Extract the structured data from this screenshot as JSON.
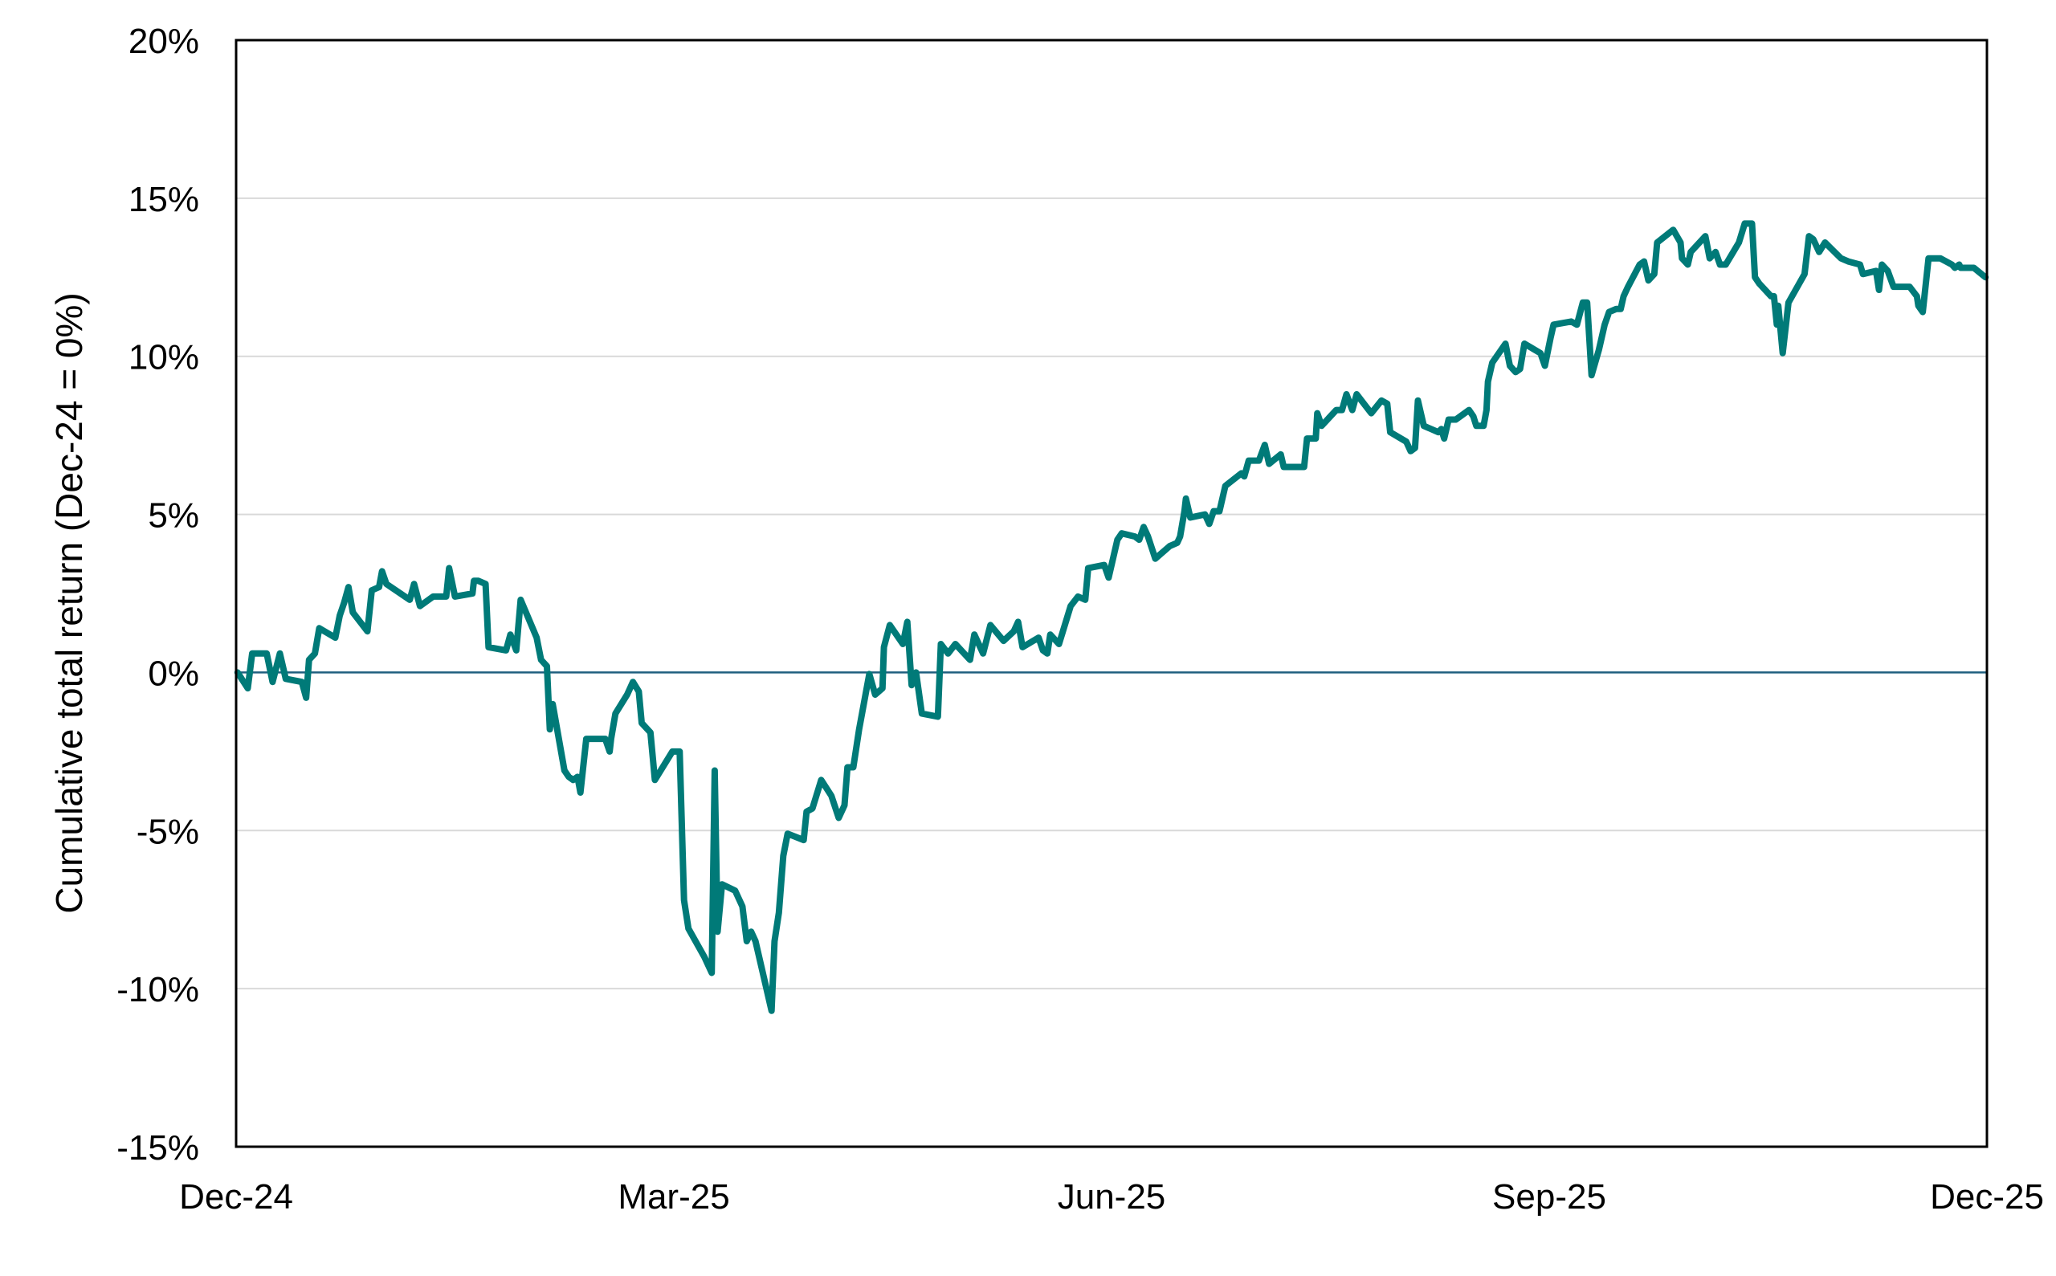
{
  "chart_data": {
    "type": "line",
    "title": "",
    "xlabel": "",
    "ylabel": "Cumulative total return (Dec-24 = 0%)",
    "ylim": [
      -15,
      20
    ],
    "xlim_months": [
      0,
      12
    ],
    "grid": "horizontal",
    "legend": "none",
    "y_ticks": [
      -15,
      -10,
      -5,
      0,
      5,
      10,
      15,
      20
    ],
    "y_tick_labels": [
      "-15%",
      "-10%",
      "-5%",
      "0%",
      "5%",
      "10%",
      "15%",
      "20%"
    ],
    "x_ticks_months": [
      0,
      3,
      6,
      9,
      12
    ],
    "x_tick_labels": [
      "Dec-24",
      "Mar-25",
      "Jun-25",
      "Sep-25",
      "Dec-25"
    ],
    "colors": {
      "series": "#007A78",
      "zero_line": "#1F5F7F",
      "grid": "#D9D9D9",
      "frame": "#000000"
    },
    "series": [
      {
        "name": "Cumulative total return",
        "x_unit": "months since Dec-24",
        "y_unit": "%",
        "points": [
          [
            0.01,
            0.0
          ],
          [
            0.08,
            -0.5
          ],
          [
            0.11,
            0.6
          ],
          [
            0.21,
            0.6
          ],
          [
            0.25,
            -0.3
          ],
          [
            0.3,
            0.6
          ],
          [
            0.34,
            -0.2
          ],
          [
            0.45,
            -0.3
          ],
          [
            0.48,
            -0.8
          ],
          [
            0.5,
            0.4
          ],
          [
            0.54,
            0.6
          ],
          [
            0.57,
            1.4
          ],
          [
            0.68,
            1.1
          ],
          [
            0.71,
            1.8
          ],
          [
            0.74,
            2.2
          ],
          [
            0.77,
            2.7
          ],
          [
            0.8,
            1.9
          ],
          [
            0.9,
            1.3
          ],
          [
            0.93,
            2.6
          ],
          [
            0.98,
            2.7
          ],
          [
            1.0,
            3.2
          ],
          [
            1.03,
            2.8
          ],
          [
            1.19,
            2.3
          ],
          [
            1.22,
            2.8
          ],
          [
            1.26,
            2.1
          ],
          [
            1.35,
            2.4
          ],
          [
            1.44,
            2.4
          ],
          [
            1.46,
            3.3
          ],
          [
            1.5,
            2.4
          ],
          [
            1.62,
            2.5
          ],
          [
            1.63,
            2.9
          ],
          [
            1.66,
            2.9
          ],
          [
            1.71,
            2.8
          ],
          [
            1.73,
            0.8
          ],
          [
            1.85,
            0.7
          ],
          [
            1.88,
            1.2
          ],
          [
            1.92,
            0.7
          ],
          [
            1.95,
            2.3
          ],
          [
            2.06,
            1.1
          ],
          [
            2.09,
            0.4
          ],
          [
            2.13,
            0.2
          ],
          [
            2.15,
            -1.8
          ],
          [
            2.17,
            -1.0
          ],
          [
            2.25,
            -3.1
          ],
          [
            2.28,
            -3.3
          ],
          [
            2.31,
            -3.4
          ],
          [
            2.34,
            -3.3
          ],
          [
            2.36,
            -3.8
          ],
          [
            2.4,
            -2.1
          ],
          [
            2.53,
            -2.1
          ],
          [
            2.56,
            -2.5
          ],
          [
            2.57,
            -2.1
          ],
          [
            2.6,
            -1.3
          ],
          [
            2.68,
            -0.7
          ],
          [
            2.72,
            -0.3
          ],
          [
            2.76,
            -0.6
          ],
          [
            2.78,
            -1.6
          ],
          [
            2.84,
            -1.9
          ],
          [
            2.87,
            -3.4
          ],
          [
            2.99,
            -2.5
          ],
          [
            3.04,
            -2.5
          ],
          [
            3.07,
            -7.2
          ],
          [
            3.1,
            -8.1
          ],
          [
            3.21,
            -9.0
          ],
          [
            3.26,
            -9.5
          ],
          [
            3.28,
            -3.1
          ],
          [
            3.3,
            -8.2
          ],
          [
            3.33,
            -6.7
          ],
          [
            3.42,
            -6.9
          ],
          [
            3.47,
            -7.4
          ],
          [
            3.5,
            -8.5
          ],
          [
            3.53,
            -8.2
          ],
          [
            3.56,
            -8.5
          ],
          [
            3.67,
            -10.7
          ],
          [
            3.69,
            -8.5
          ],
          [
            3.72,
            -7.6
          ],
          [
            3.75,
            -5.8
          ],
          [
            3.78,
            -5.1
          ],
          [
            3.89,
            -5.3
          ],
          [
            3.91,
            -4.4
          ],
          [
            3.95,
            -4.3
          ],
          [
            4.01,
            -3.4
          ],
          [
            4.08,
            -3.9
          ],
          [
            4.13,
            -4.6
          ],
          [
            4.17,
            -4.2
          ],
          [
            4.19,
            -3.0
          ],
          [
            4.23,
            -3.0
          ],
          [
            4.27,
            -1.8
          ],
          [
            4.34,
            -0.05
          ],
          [
            4.38,
            -0.7
          ],
          [
            4.43,
            -0.5
          ],
          [
            4.44,
            0.8
          ],
          [
            4.48,
            1.5
          ],
          [
            4.57,
            0.9
          ],
          [
            4.6,
            1.6
          ],
          [
            4.63,
            -0.4
          ],
          [
            4.66,
            0.0
          ],
          [
            4.7,
            -1.3
          ],
          [
            4.81,
            -1.4
          ],
          [
            4.83,
            0.9
          ],
          [
            4.88,
            0.6
          ],
          [
            4.93,
            0.9
          ],
          [
            5.03,
            0.4
          ],
          [
            5.06,
            1.2
          ],
          [
            5.12,
            0.6
          ],
          [
            5.17,
            1.5
          ],
          [
            5.26,
            1.0
          ],
          [
            5.33,
            1.3
          ],
          [
            5.36,
            1.6
          ],
          [
            5.39,
            0.8
          ],
          [
            5.5,
            1.1
          ],
          [
            5.53,
            0.7
          ],
          [
            5.56,
            0.6
          ],
          [
            5.58,
            1.2
          ],
          [
            5.64,
            0.9
          ],
          [
            5.72,
            2.1
          ],
          [
            5.77,
            2.4
          ],
          [
            5.82,
            2.3
          ],
          [
            5.84,
            3.3
          ],
          [
            5.95,
            3.4
          ],
          [
            5.98,
            3.0
          ],
          [
            6.04,
            4.2
          ],
          [
            6.07,
            4.4
          ],
          [
            6.16,
            4.3
          ],
          [
            6.19,
            4.2
          ],
          [
            6.22,
            4.6
          ],
          [
            6.25,
            4.3
          ],
          [
            6.3,
            3.6
          ],
          [
            6.4,
            4.0
          ],
          [
            6.45,
            4.1
          ],
          [
            6.47,
            4.3
          ],
          [
            6.5,
            5.1
          ],
          [
            6.51,
            5.5
          ],
          [
            6.54,
            4.9
          ],
          [
            6.64,
            5.0
          ],
          [
            6.67,
            4.7
          ],
          [
            6.7,
            5.1
          ],
          [
            6.74,
            5.1
          ],
          [
            6.78,
            5.9
          ],
          [
            6.89,
            6.3
          ],
          [
            6.91,
            6.2
          ],
          [
            6.94,
            6.7
          ],
          [
            6.97,
            6.7
          ],
          [
            7.01,
            6.7
          ],
          [
            7.05,
            7.2
          ],
          [
            7.08,
            6.6
          ],
          [
            7.16,
            6.9
          ],
          [
            7.18,
            6.5
          ],
          [
            7.32,
            6.5
          ],
          [
            7.34,
            7.4
          ],
          [
            7.4,
            7.4
          ],
          [
            7.41,
            8.2
          ],
          [
            7.44,
            7.8
          ],
          [
            7.54,
            8.3
          ],
          [
            7.58,
            8.3
          ],
          [
            7.61,
            8.8
          ],
          [
            7.65,
            8.3
          ],
          [
            7.68,
            8.8
          ],
          [
            7.78,
            8.2
          ],
          [
            7.85,
            8.6
          ],
          [
            7.89,
            8.5
          ],
          [
            7.91,
            7.6
          ],
          [
            8.02,
            7.3
          ],
          [
            8.05,
            7.0
          ],
          [
            8.08,
            7.1
          ],
          [
            8.1,
            8.6
          ],
          [
            8.14,
            7.8
          ],
          [
            8.24,
            7.6
          ],
          [
            8.26,
            7.7
          ],
          [
            8.28,
            7.4
          ],
          [
            8.31,
            8.0
          ],
          [
            8.36,
            8.0
          ],
          [
            8.45,
            8.3
          ],
          [
            8.48,
            8.1
          ],
          [
            8.5,
            7.8
          ],
          [
            8.55,
            7.8
          ],
          [
            8.57,
            8.3
          ],
          [
            8.58,
            9.2
          ],
          [
            8.61,
            9.8
          ],
          [
            8.7,
            10.4
          ],
          [
            8.73,
            9.7
          ],
          [
            8.77,
            9.5
          ],
          [
            8.8,
            9.6
          ],
          [
            8.83,
            10.4
          ],
          [
            8.94,
            10.1
          ],
          [
            8.97,
            9.7
          ],
          [
            9.01,
            10.6
          ],
          [
            9.03,
            11.0
          ],
          [
            9.15,
            11.1
          ],
          [
            9.19,
            11.0
          ],
          [
            9.23,
            11.7
          ],
          [
            9.26,
            11.7
          ],
          [
            9.29,
            9.4
          ],
          [
            9.34,
            10.2
          ],
          [
            9.38,
            11.0
          ],
          [
            9.41,
            11.4
          ],
          [
            9.46,
            11.5
          ],
          [
            9.49,
            11.5
          ],
          [
            9.51,
            11.9
          ],
          [
            9.54,
            12.2
          ],
          [
            9.62,
            12.9
          ],
          [
            9.65,
            13.0
          ],
          [
            9.68,
            12.4
          ],
          [
            9.72,
            12.6
          ],
          [
            9.74,
            13.6
          ],
          [
            9.85,
            14.0
          ],
          [
            9.9,
            13.6
          ],
          [
            9.91,
            13.1
          ],
          [
            9.95,
            12.9
          ],
          [
            9.97,
            13.3
          ],
          [
            10.07,
            13.8
          ],
          [
            10.1,
            13.1
          ],
          [
            10.14,
            13.3
          ],
          [
            10.17,
            12.9
          ],
          [
            10.21,
            12.9
          ],
          [
            10.3,
            13.6
          ],
          [
            10.34,
            14.2
          ],
          [
            10.39,
            14.2
          ],
          [
            10.41,
            12.5
          ],
          [
            10.44,
            12.3
          ],
          [
            10.52,
            11.9
          ],
          [
            10.54,
            11.9
          ],
          [
            10.56,
            11.0
          ],
          [
            10.57,
            11.6
          ],
          [
            10.6,
            10.1
          ],
          [
            10.64,
            11.7
          ],
          [
            10.75,
            12.6
          ],
          [
            10.78,
            13.8
          ],
          [
            10.81,
            13.7
          ],
          [
            10.85,
            13.3
          ],
          [
            10.89,
            13.6
          ],
          [
            11.0,
            13.1
          ],
          [
            11.05,
            13.0
          ],
          [
            11.13,
            12.9
          ],
          [
            11.15,
            12.6
          ],
          [
            11.24,
            12.7
          ],
          [
            11.26,
            12.1
          ],
          [
            11.28,
            12.9
          ],
          [
            11.32,
            12.7
          ],
          [
            11.36,
            12.2
          ],
          [
            11.44,
            12.2
          ],
          [
            11.47,
            12.2
          ],
          [
            11.52,
            11.9
          ],
          [
            11.53,
            11.6
          ],
          [
            11.56,
            11.4
          ],
          [
            11.6,
            13.1
          ],
          [
            11.68,
            13.1
          ],
          [
            11.76,
            12.9
          ],
          [
            11.78,
            12.8
          ],
          [
            11.81,
            12.9
          ],
          [
            11.82,
            12.8
          ],
          [
            11.91,
            12.8
          ],
          [
            11.99,
            12.5
          ]
        ]
      }
    ]
  }
}
